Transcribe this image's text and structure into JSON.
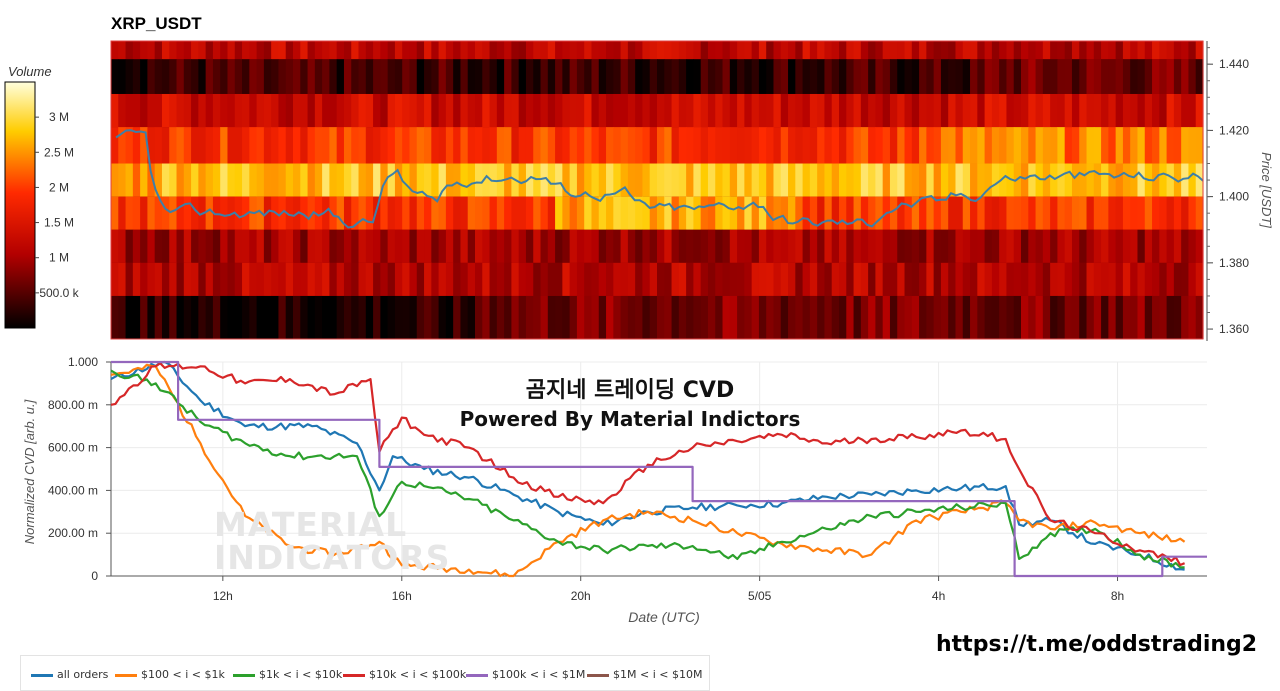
{
  "title": "XRP_USDT",
  "colorbar": {
    "title": "Volume",
    "ticks": [
      {
        "label": "3 M",
        "value": 3000000
      },
      {
        "label": "2.5 M",
        "value": 2500000
      },
      {
        "label": "2 M",
        "value": 2000000
      },
      {
        "label": "1.5 M",
        "value": 1500000
      },
      {
        "label": "1 M",
        "value": 1000000
      },
      {
        "label": "500.0 k",
        "value": 500000
      }
    ],
    "range": [
      0,
      3500000
    ]
  },
  "heatmap": {
    "price_axis_label": "Price [USDT]",
    "price_ticks": [
      "1.440",
      "1.420",
      "1.400",
      "1.380",
      "1.360"
    ],
    "price_tick_values": [
      1.44,
      1.42,
      1.4,
      1.38,
      1.36
    ],
    "price_range": [
      1.357,
      1.447
    ],
    "levels": [
      1.445,
      1.44,
      1.43,
      1.42,
      1.41,
      1.4,
      1.39,
      1.38,
      1.37,
      1.36
    ],
    "price_line_color": "#3d7fa8"
  },
  "cvd": {
    "y_axis_label": "Normalized CVD [arb. u.]",
    "y_ticks": [
      "1.000",
      "800.00 m",
      "600.00 m",
      "400.00 m",
      "200.00 m",
      "0"
    ],
    "y_tick_values": [
      1.0,
      0.8,
      0.6,
      0.4,
      0.2,
      0
    ],
    "x_axis_label": "Date (UTC)",
    "x_ticks": [
      "12h",
      "16h",
      "20h",
      "5/05",
      "4h",
      "8h"
    ],
    "x_tick_values": [
      2.5,
      6.5,
      10.5,
      14.5,
      18.5,
      22.5
    ],
    "x_range": [
      0,
      24.5
    ]
  },
  "chart_data": {
    "type": "line",
    "x_unit": "hours",
    "series": [
      {
        "name": "all orders",
        "color": "#1f77b4",
        "points": [
          [
            0,
            0.92
          ],
          [
            1.2,
            1.0
          ],
          [
            2,
            0.82
          ],
          [
            3,
            0.7
          ],
          [
            4.5,
            0.7
          ],
          [
            5.5,
            0.62
          ],
          [
            6.0,
            0.4
          ],
          [
            6.3,
            0.56
          ],
          [
            7,
            0.5
          ],
          [
            8,
            0.46
          ],
          [
            9,
            0.38
          ],
          [
            10,
            0.3
          ],
          [
            11,
            0.24
          ],
          [
            12,
            0.3
          ],
          [
            13,
            0.32
          ],
          [
            14,
            0.33
          ],
          [
            15,
            0.34
          ],
          [
            16,
            0.37
          ],
          [
            17,
            0.38
          ],
          [
            18,
            0.4
          ],
          [
            19,
            0.41
          ],
          [
            20,
            0.42
          ],
          [
            20.3,
            0.24
          ],
          [
            21,
            0.26
          ],
          [
            22,
            0.15
          ],
          [
            23,
            0.1
          ],
          [
            24,
            0.03
          ]
        ]
      },
      {
        "name": "$100 < i < $1k",
        "color": "#ff7f0e",
        "points": [
          [
            0,
            0.94
          ],
          [
            1,
            0.98
          ],
          [
            2,
            0.62
          ],
          [
            3,
            0.28
          ],
          [
            4,
            0.14
          ],
          [
            5,
            0.1
          ],
          [
            6,
            0.16
          ],
          [
            6.5,
            0.05
          ],
          [
            8,
            0.03
          ],
          [
            9,
            0.0
          ],
          [
            10,
            0.16
          ],
          [
            11,
            0.26
          ],
          [
            12,
            0.3
          ],
          [
            13,
            0.26
          ],
          [
            14,
            0.2
          ],
          [
            15,
            0.15
          ],
          [
            16,
            0.12
          ],
          [
            17,
            0.1
          ],
          [
            18,
            0.26
          ],
          [
            19,
            0.3
          ],
          [
            20,
            0.34
          ],
          [
            20.3,
            0.26
          ],
          [
            21,
            0.22
          ],
          [
            22,
            0.25
          ],
          [
            23,
            0.2
          ],
          [
            24,
            0.16
          ]
        ]
      },
      {
        "name": "$1k < i < $10k",
        "color": "#2ca02c",
        "points": [
          [
            0,
            0.96
          ],
          [
            1,
            0.9
          ],
          [
            2,
            0.72
          ],
          [
            3,
            0.62
          ],
          [
            4,
            0.56
          ],
          [
            5.5,
            0.56
          ],
          [
            6.0,
            0.28
          ],
          [
            6.5,
            0.44
          ],
          [
            7,
            0.42
          ],
          [
            8,
            0.36
          ],
          [
            9,
            0.26
          ],
          [
            10,
            0.16
          ],
          [
            11,
            0.12
          ],
          [
            12,
            0.14
          ],
          [
            13,
            0.14
          ],
          [
            14,
            0.08
          ],
          [
            15,
            0.16
          ],
          [
            16,
            0.22
          ],
          [
            17,
            0.28
          ],
          [
            18,
            0.3
          ],
          [
            19,
            0.32
          ],
          [
            20,
            0.34
          ],
          [
            20.3,
            0.08
          ],
          [
            21,
            0.2
          ],
          [
            22,
            0.22
          ],
          [
            23,
            0.1
          ],
          [
            24,
            0.04
          ]
        ]
      },
      {
        "name": "$10k < i < $100k",
        "color": "#d62728",
        "points": [
          [
            0,
            0.8
          ],
          [
            1,
            0.98
          ],
          [
            2,
            0.98
          ],
          [
            3,
            0.9
          ],
          [
            4,
            0.92
          ],
          [
            5,
            0.85
          ],
          [
            5.8,
            0.92
          ],
          [
            6.0,
            0.58
          ],
          [
            6.5,
            0.74
          ],
          [
            7,
            0.66
          ],
          [
            8,
            0.6
          ],
          [
            9,
            0.46
          ],
          [
            10,
            0.37
          ],
          [
            11,
            0.34
          ],
          [
            12,
            0.52
          ],
          [
            13,
            0.6
          ],
          [
            14,
            0.63
          ],
          [
            15,
            0.66
          ],
          [
            16,
            0.62
          ],
          [
            17,
            0.64
          ],
          [
            18,
            0.65
          ],
          [
            19,
            0.68
          ],
          [
            20,
            0.64
          ],
          [
            20.3,
            0.5
          ],
          [
            21,
            0.26
          ],
          [
            22,
            0.2
          ],
          [
            23,
            0.12
          ],
          [
            24,
            0.06
          ]
        ]
      },
      {
        "name": "$100k < i < $1M",
        "color": "#9467bd",
        "points": [
          [
            0,
            1.0
          ],
          [
            1.5,
            1.0
          ],
          [
            1.5,
            0.73
          ],
          [
            6.0,
            0.73
          ],
          [
            6.0,
            0.51
          ],
          [
            13.0,
            0.51
          ],
          [
            13.0,
            0.35
          ],
          [
            20.2,
            0.35
          ],
          [
            20.2,
            0.0
          ],
          [
            23.5,
            0.0
          ],
          [
            23.5,
            0.09
          ],
          [
            24.5,
            0.09
          ]
        ]
      },
      {
        "name": "$1M < i < $10M",
        "color": "#8c564b",
        "points": []
      }
    ]
  },
  "overlay": {
    "line1": "곰지네 트레이딩 CVD",
    "line2": "Powered By Material Indictors"
  },
  "watermark": {
    "line1": "MATERIAL",
    "line2": "INDICATORS"
  },
  "url": "https://t.me/oddstrading2"
}
